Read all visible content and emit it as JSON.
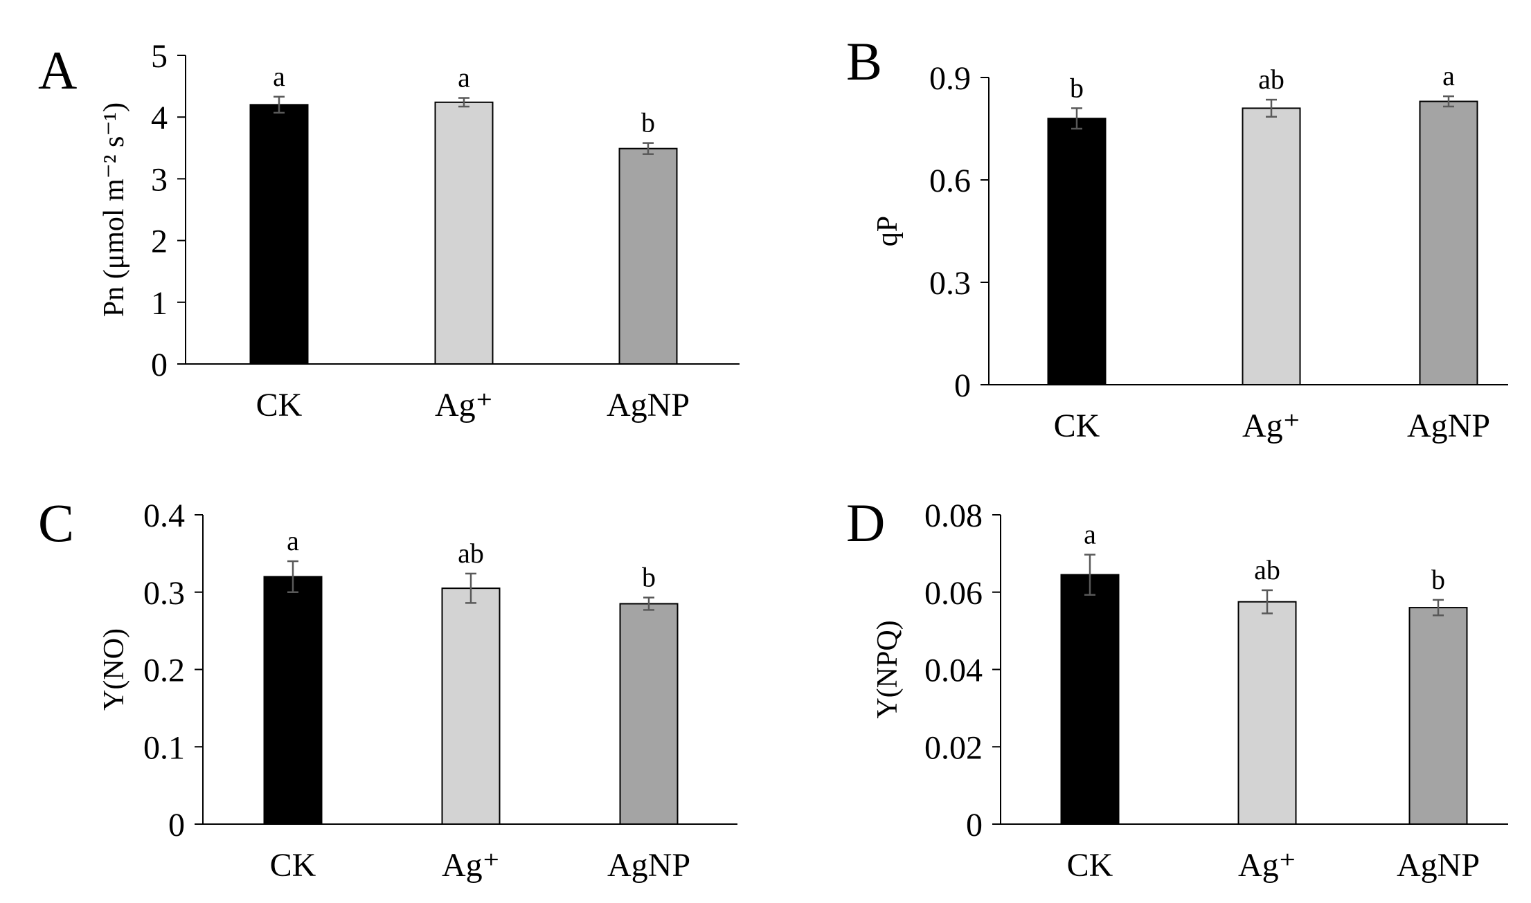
{
  "chart_data": [
    {
      "type": "bar",
      "panel_label": "A",
      "title": "",
      "categories": [
        "CK",
        "Ag⁺",
        "AgNP"
      ],
      "values": [
        4.2,
        4.24,
        3.49
      ],
      "errors": [
        0.13,
        0.07,
        0.09
      ],
      "significance": [
        "a",
        "a",
        "b"
      ],
      "ylabel": "Pn (μmol m⁻² s⁻¹)",
      "xlabel": "",
      "ylim": [
        0,
        5
      ],
      "yticks": [
        0,
        1,
        2,
        3,
        4,
        5
      ],
      "ytick_labels": [
        "0",
        "1",
        "2",
        "3",
        "4",
        "5"
      ],
      "colors": [
        "#000000",
        "#d3d3d3",
        "#a4a4a4"
      ],
      "grid": false
    },
    {
      "type": "bar",
      "panel_label": "B",
      "title": "",
      "categories": [
        "CK",
        "Ag⁺",
        "AgNP"
      ],
      "values": [
        0.78,
        0.81,
        0.83
      ],
      "errors": [
        0.03,
        0.025,
        0.015
      ],
      "significance": [
        "b",
        "ab",
        "a"
      ],
      "ylabel": "qP",
      "xlabel": "",
      "ylim": [
        0,
        0.9
      ],
      "yticks": [
        0,
        0.3,
        0.6,
        0.9
      ],
      "ytick_labels": [
        "0",
        "0.3",
        "0.6",
        "0.9"
      ],
      "colors": [
        "#000000",
        "#d3d3d3",
        "#a4a4a4"
      ],
      "grid": false
    },
    {
      "type": "bar",
      "panel_label": "C",
      "title": "",
      "categories": [
        "CK",
        "Ag⁺",
        "AgNP"
      ],
      "values": [
        0.32,
        0.305,
        0.285
      ],
      "errors": [
        0.02,
        0.019,
        0.008
      ],
      "significance": [
        "a",
        "ab",
        "b"
      ],
      "ylabel": "Y(NO)",
      "xlabel": "",
      "ylim": [
        0,
        0.4
      ],
      "yticks": [
        0,
        0.1,
        0.2,
        0.3,
        0.4
      ],
      "ytick_labels": [
        "0",
        "0.1",
        "0.2",
        "0.3",
        "0.4"
      ],
      "colors": [
        "#000000",
        "#d3d3d3",
        "#a4a4a4"
      ],
      "grid": false
    },
    {
      "type": "bar",
      "panel_label": "D",
      "title": "",
      "categories": [
        "CK",
        "Ag⁺",
        "AgNP"
      ],
      "values": [
        0.0645,
        0.0575,
        0.056
      ],
      "errors": [
        0.0052,
        0.003,
        0.002
      ],
      "significance": [
        "a",
        "ab",
        "b"
      ],
      "ylabel": "Y(NPQ)",
      "xlabel": "",
      "ylim": [
        0,
        0.08
      ],
      "yticks": [
        0,
        0.02,
        0.04,
        0.06,
        0.08
      ],
      "ytick_labels": [
        "0",
        "0.02",
        "0.04",
        "0.06",
        "0.08"
      ],
      "colors": [
        "#000000",
        "#d3d3d3",
        "#a4a4a4"
      ],
      "grid": false
    }
  ]
}
